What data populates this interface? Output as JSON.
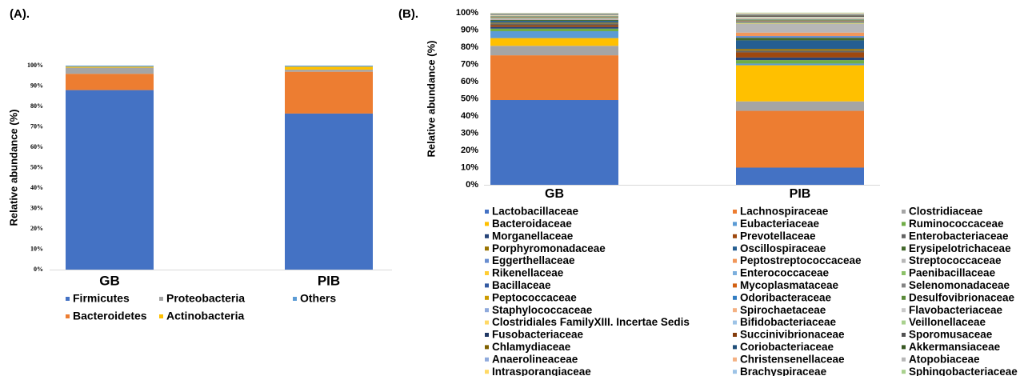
{
  "chart_data": [
    {
      "type": "bar",
      "stacked": true,
      "title": "(A).",
      "y_label": "Relative abundance (%)",
      "categories": [
        "GB",
        "PIB"
      ],
      "series": [
        {
          "name": "Firmicutes",
          "color": "#4472C4",
          "values": [
            88,
            76.5
          ]
        },
        {
          "name": "Bacteroidetes",
          "color": "#ED7D31",
          "values": [
            8,
            20.5
          ]
        },
        {
          "name": "Proteobacteria",
          "color": "#A5A5A5",
          "values": [
            3,
            1
          ]
        },
        {
          "name": "Actinobacteria",
          "color": "#FFC000",
          "values": [
            0.5,
            1.5
          ]
        },
        {
          "name": "Others",
          "color": "#5B9BD5",
          "values": [
            0.5,
            0.5
          ]
        }
      ],
      "ylim": [
        0,
        100
      ],
      "yticks": [
        {
          "value": 0,
          "label": "0%"
        },
        {
          "value": 10,
          "label": "10%"
        },
        {
          "value": 20,
          "label": "20%"
        },
        {
          "value": 30,
          "label": "30%"
        },
        {
          "value": 40,
          "label": "40%"
        },
        {
          "value": 50,
          "label": "50%"
        },
        {
          "value": 60,
          "label": "60%"
        },
        {
          "value": 70,
          "label": "70%"
        },
        {
          "value": 80,
          "label": "80%"
        },
        {
          "value": 90,
          "label": "90%"
        },
        {
          "value": 100,
          "label": "100%"
        }
      ],
      "grid": false
    },
    {
      "type": "bar",
      "stacked": true,
      "title": "(B).",
      "y_label": "Relative abundance (%)",
      "categories": [
        "GB",
        "PIB"
      ],
      "series": [
        {
          "name": "Lactobacillaceae",
          "color": "#4472C4",
          "values": [
            49.3,
            10
          ]
        },
        {
          "name": "Lachnospiraceae",
          "color": "#ED7D31",
          "values": [
            26,
            33
          ]
        },
        {
          "name": "Clostridiaceae",
          "color": "#A5A5A5",
          "values": [
            5.5,
            5.5
          ]
        },
        {
          "name": "Bacteroidaceae",
          "color": "#FFC000",
          "values": [
            4.5,
            21
          ]
        },
        {
          "name": "Eubacteriaceae",
          "color": "#5B9BD5",
          "values": [
            4,
            1
          ]
        },
        {
          "name": "Ruminococcaceae",
          "color": "#70AD47",
          "values": [
            1.5,
            2
          ]
        },
        {
          "name": "Morganellaceae",
          "color": "#264478",
          "values": [
            1,
            1.5
          ]
        },
        {
          "name": "Prevotellaceae",
          "color": "#9E480E",
          "values": [
            1,
            3
          ]
        },
        {
          "name": "Enterobacteriaceae",
          "color": "#636363",
          "values": [
            1,
            1
          ]
        },
        {
          "name": "Porphyromonadaceae",
          "color": "#997300",
          "values": [
            0.5,
            1
          ]
        },
        {
          "name": "Oscillospiraceae",
          "color": "#255E91",
          "values": [
            1,
            5
          ]
        },
        {
          "name": "Erysipelotrichaceae",
          "color": "#43682B",
          "values": [
            0.5,
            1.5
          ]
        },
        {
          "name": "Eggerthellaceae",
          "color": "#698ED0",
          "values": [
            0.2,
            1
          ]
        },
        {
          "name": "Peptostreptococcaceae",
          "color": "#F1975A",
          "values": [
            0.2,
            2
          ]
        },
        {
          "name": "Streptococcaceae",
          "color": "#B7B7B7",
          "values": [
            0.2,
            5
          ]
        },
        {
          "name": "Rikenellaceae",
          "color": "#FFCD33",
          "values": [
            0.2,
            0.3
          ]
        },
        {
          "name": "Enterococcaceae",
          "color": "#7CAFDD",
          "values": [
            0.2,
            0.3
          ]
        },
        {
          "name": "Paenibacillaceae",
          "color": "#8CC168",
          "values": [
            0.2,
            0.3
          ]
        },
        {
          "name": "Bacillaceae",
          "color": "#335AA1",
          "values": [
            0.2,
            0.3
          ]
        },
        {
          "name": "Mycoplasmataceae",
          "color": "#D26012",
          "values": [
            0.2,
            0.3
          ]
        },
        {
          "name": "Selenomonadaceae",
          "color": "#848484",
          "values": [
            0.2,
            0.3
          ]
        },
        {
          "name": "Peptococcaceae",
          "color": "#CC9A00",
          "values": [
            0.2,
            0.3
          ]
        },
        {
          "name": "Odoribacteraceae",
          "color": "#327DC2",
          "values": [
            0.2,
            0.3
          ]
        },
        {
          "name": "Desulfovibrionaceae",
          "color": "#5A8A39",
          "values": [
            0.2,
            0.3
          ]
        },
        {
          "name": "Staphylococcaceae",
          "color": "#8FAADC",
          "values": [
            0.1,
            0.3
          ]
        },
        {
          "name": "Spirochaetaceae",
          "color": "#F4B183",
          "values": [
            0.1,
            0.3
          ]
        },
        {
          "name": "Flavobacteriaceae",
          "color": "#C9C9C9",
          "values": [
            0.1,
            0.3
          ]
        },
        {
          "name": "Clostridiales FamilyXIII. Incertae Sedis",
          "color": "#FFD966",
          "values": [
            0.1,
            0.2
          ]
        },
        {
          "name": "Bifidobacteriaceae",
          "color": "#9DC3E6",
          "values": [
            0.1,
            0.2
          ]
        },
        {
          "name": "Veillonellaceae",
          "color": "#A9D18E",
          "values": [
            0.1,
            0.2
          ]
        },
        {
          "name": "Fusobacteriaceae",
          "color": "#203864",
          "values": [
            0.1,
            0.2
          ]
        },
        {
          "name": "Succinivibrionaceae",
          "color": "#843C0C",
          "values": [
            0.1,
            0.2
          ]
        },
        {
          "name": "Sporomusaceae",
          "color": "#525252",
          "values": [
            0.1,
            0.2
          ]
        },
        {
          "name": "Chlamydiaceae",
          "color": "#7F6000",
          "values": [
            0.1,
            0.2
          ]
        },
        {
          "name": "Coriobacteriaceae",
          "color": "#1F4E79",
          "values": [
            0.1,
            0.2
          ]
        },
        {
          "name": "Akkermansiaceae",
          "color": "#385723",
          "values": [
            0.1,
            0.2
          ]
        },
        {
          "name": "Anaerolineaceae",
          "color": "#8FAADC",
          "values": [
            0.1,
            0.2
          ]
        },
        {
          "name": "Christensenellaceae",
          "color": "#F4B183",
          "values": [
            0.1,
            0.2
          ]
        },
        {
          "name": "Atopobiaceae",
          "color": "#B7B7B7",
          "values": [
            0.1,
            0.2
          ]
        },
        {
          "name": "Intrasporangiaceae",
          "color": "#FFD966",
          "values": [
            0.1,
            0.2
          ]
        },
        {
          "name": "Brachyspiraceae",
          "color": "#9DC3E6",
          "values": [
            0.1,
            0.2
          ]
        },
        {
          "name": "Sphingobacteriaceae",
          "color": "#A9D18E",
          "values": [
            0.1,
            0.2
          ]
        }
      ],
      "ylim": [
        0,
        100
      ],
      "yticks": [
        {
          "value": 0,
          "label": "0%"
        },
        {
          "value": 10,
          "label": "10%"
        },
        {
          "value": 20,
          "label": "20%"
        },
        {
          "value": 30,
          "label": "30%"
        },
        {
          "value": 40,
          "label": "40%"
        },
        {
          "value": 50,
          "label": "50%"
        },
        {
          "value": 60,
          "label": "60%"
        },
        {
          "value": 70,
          "label": "70%"
        },
        {
          "value": 80,
          "label": "80%"
        },
        {
          "value": 90,
          "label": "90%"
        },
        {
          "value": 100,
          "label": "100%"
        }
      ],
      "grid": false
    }
  ]
}
